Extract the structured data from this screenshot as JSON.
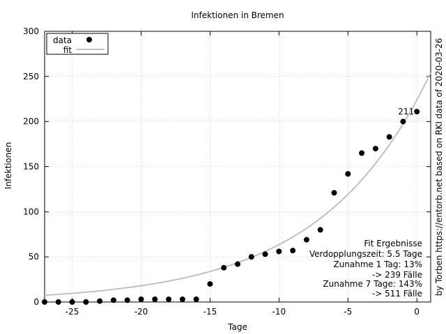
{
  "chart_data": {
    "type": "scatter",
    "title": "Infektionen in Bremen",
    "xlabel": "Tage",
    "ylabel": "Infektionen",
    "xlim": [
      -27,
      1
    ],
    "ylim": [
      0,
      300
    ],
    "xticks": [
      -25,
      -20,
      -15,
      -10,
      -5,
      0
    ],
    "yticks": [
      0,
      50,
      100,
      150,
      200,
      250,
      300
    ],
    "grid": true,
    "legend_position": "top-left",
    "series": [
      {
        "name": "data",
        "marker": "circle",
        "color": "#000000",
        "points": [
          [
            -27,
            0
          ],
          [
            -26,
            0
          ],
          [
            -25,
            0
          ],
          [
            -24,
            0
          ],
          [
            -23,
            1
          ],
          [
            -22,
            2
          ],
          [
            -21,
            2
          ],
          [
            -20,
            3
          ],
          [
            -19,
            3
          ],
          [
            -18,
            3
          ],
          [
            -17,
            3
          ],
          [
            -16,
            3
          ],
          [
            -15,
            20
          ],
          [
            -14,
            38
          ],
          [
            -13,
            42
          ],
          [
            -12,
            50
          ],
          [
            -11,
            53
          ],
          [
            -10,
            56
          ],
          [
            -9,
            57
          ],
          [
            -8,
            69
          ],
          [
            -7,
            80
          ],
          [
            -6,
            121
          ],
          [
            -5,
            142
          ],
          [
            -4,
            165
          ],
          [
            -3,
            170
          ],
          [
            -2,
            183
          ],
          [
            -1,
            200
          ],
          [
            0,
            211
          ]
        ]
      },
      {
        "name": "fit",
        "style": "line",
        "color": "#c0c0c0",
        "model": "exponential",
        "a": 224,
        "b": 0.126
      }
    ],
    "point_label": {
      "x": 0,
      "y": 211,
      "text": "211"
    },
    "annotations": [
      "Fit Ergebnisse",
      "Verdopplungszeit: 5.5 Tage",
      "Zunahme 1 Tag: 13%",
      "-> 239 Fälle",
      "Zunahme 7 Tage: 143%",
      "-> 511 Fälle"
    ],
    "side_label": "by Torben https://entorb.net based on RKI data of 2020-03-26"
  }
}
